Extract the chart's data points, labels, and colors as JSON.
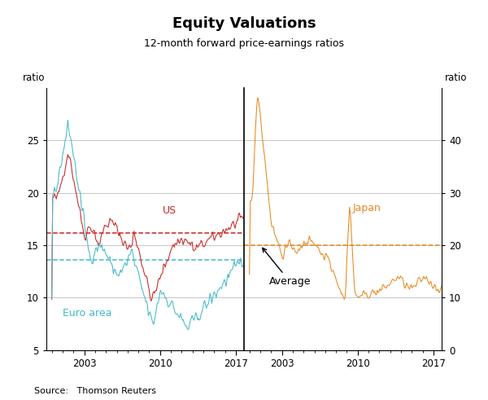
{
  "title": "Equity Valuations",
  "subtitle": "12-month forward price-earnings ratios",
  "source": "Source:   Thomson Reuters",
  "left_ylim": [
    5,
    30
  ],
  "right_ylim": [
    0,
    50
  ],
  "left_yticks": [
    5,
    10,
    15,
    20,
    25
  ],
  "right_yticks": [
    0,
    10,
    20,
    30,
    40
  ],
  "left_ytick_labels": [
    "5",
    "10",
    "15",
    "20",
    "25"
  ],
  "right_ytick_labels": [
    "0",
    "10",
    "20",
    "30",
    "40"
  ],
  "x_start_year": 1999.5,
  "x_end_year": 2017.75,
  "x_ticks": [
    2003,
    2010,
    2017
  ],
  "us_avg": 16.2,
  "euro_avg": 13.6,
  "japan_avg": 20.0,
  "us_color": "#cc2222",
  "euro_color": "#44b8c8",
  "japan_color": "#e88820",
  "grid_color": "#bbbbbb",
  "background_color": "#ffffff",
  "title_fontsize": 13,
  "subtitle_fontsize": 9,
  "tick_fontsize": 8.5,
  "annotation_fontsize": 9
}
